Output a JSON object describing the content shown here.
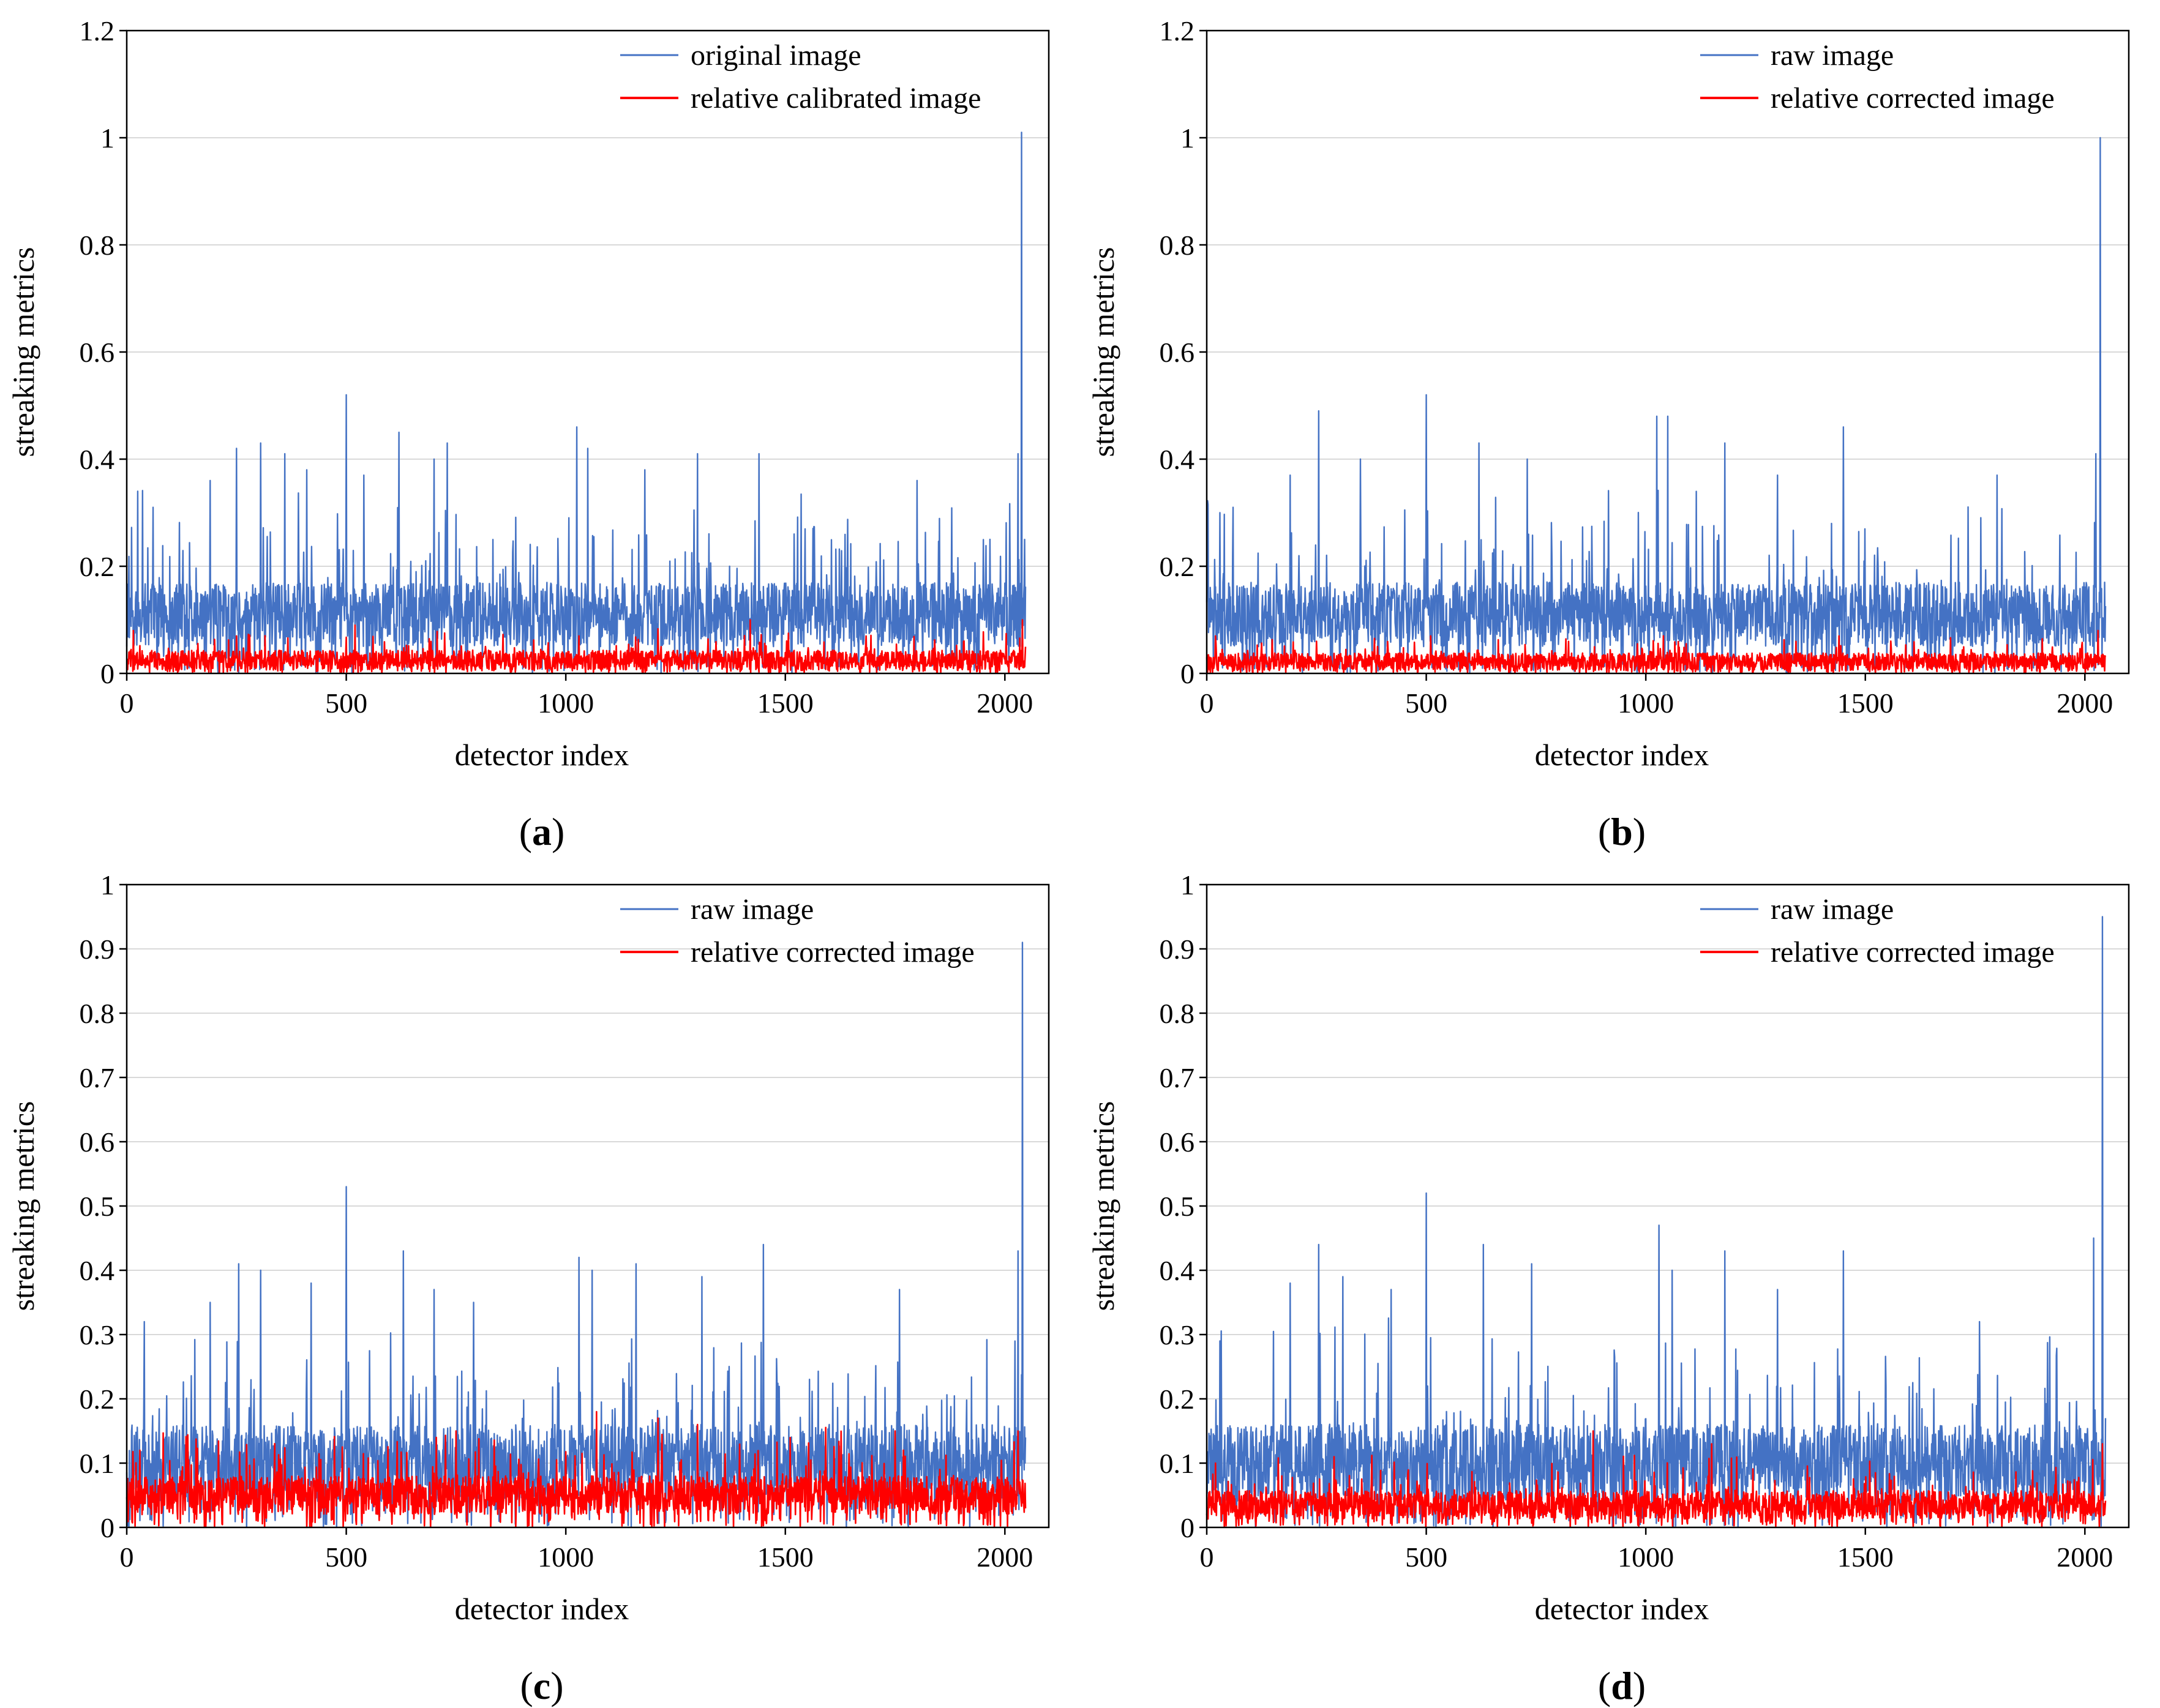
{
  "chart_data": [
    {
      "type": "line",
      "panel": "(a)",
      "caption_letter": "a",
      "title": "",
      "xlabel": "detector index",
      "ylabel": "streaking metrics",
      "xlim": [
        0,
        2100
      ],
      "ylim": [
        0,
        1.2
      ],
      "x_ticks": [
        0,
        500,
        1000,
        1500,
        2000
      ],
      "x_tick_labels": [
        "0",
        "500",
        "1000",
        "1500",
        "2000"
      ],
      "y_ticks": [
        0,
        0.2,
        0.4,
        0.6,
        0.8,
        1.0,
        1.2
      ],
      "y_tick_labels": [
        "0",
        "0.2",
        "0.4",
        "0.6",
        "0.8",
        "1",
        "1.2"
      ],
      "legend_position": "top-right",
      "series": [
        {
          "name": "original image",
          "color": "#4472C4",
          "base": 0.11,
          "noise": 0.06,
          "seed": 11,
          "n": 2048,
          "peaks": [
            [
              25,
              0.34
            ],
            [
              60,
              0.31
            ],
            [
              190,
              0.36
            ],
            [
              250,
              0.42
            ],
            [
              305,
              0.43
            ],
            [
              360,
              0.41
            ],
            [
              410,
              0.38
            ],
            [
              500,
              0.52
            ],
            [
              540,
              0.37
            ],
            [
              620,
              0.45
            ],
            [
              700,
              0.4
            ],
            [
              730,
              0.43
            ],
            [
              1025,
              0.46
            ],
            [
              1050,
              0.42
            ],
            [
              1180,
              0.38
            ],
            [
              1300,
              0.41
            ],
            [
              1440,
              0.41
            ],
            [
              1800,
              0.36
            ],
            [
              2030,
              0.41
            ],
            [
              2038,
              1.01
            ],
            [
              2045,
              0.25
            ]
          ]
        },
        {
          "name": "relative calibrated image",
          "color": "#FF0000",
          "base": 0.025,
          "noise": 0.018,
          "seed": 12,
          "n": 2048,
          "peaks": [
            [
              15,
              0.08
            ],
            [
              250,
              0.07
            ],
            [
              520,
              0.09
            ],
            [
              1030,
              0.07
            ],
            [
              1420,
              0.1
            ],
            [
              2040,
              0.1
            ]
          ]
        }
      ]
    },
    {
      "type": "line",
      "panel": "(b)",
      "caption_letter": "b",
      "title": "",
      "xlabel": "detector index",
      "ylabel": "streaking metrics",
      "xlim": [
        0,
        2100
      ],
      "ylim": [
        0,
        1.2
      ],
      "x_ticks": [
        0,
        500,
        1000,
        1500,
        2000
      ],
      "x_tick_labels": [
        "0",
        "500",
        "1000",
        "1500",
        "2000"
      ],
      "y_ticks": [
        0,
        0.2,
        0.4,
        0.6,
        0.8,
        1.0,
        1.2
      ],
      "y_tick_labels": [
        "0",
        "0.2",
        "0.4",
        "0.6",
        "0.8",
        "1",
        "1.2"
      ],
      "legend_position": "top-right",
      "series": [
        {
          "name": "raw image",
          "color": "#4472C4",
          "base": 0.11,
          "noise": 0.06,
          "seed": 21,
          "n": 2048,
          "peaks": [
            [
              30,
              0.3
            ],
            [
              60,
              0.31
            ],
            [
              190,
              0.37
            ],
            [
              255,
              0.49
            ],
            [
              350,
              0.4
            ],
            [
              500,
              0.52
            ],
            [
              620,
              0.43
            ],
            [
              730,
              0.4
            ],
            [
              1025,
              0.48
            ],
            [
              1050,
              0.48
            ],
            [
              1180,
              0.43
            ],
            [
              1300,
              0.37
            ],
            [
              1450,
              0.46
            ],
            [
              1800,
              0.37
            ],
            [
              2025,
              0.41
            ],
            [
              2035,
              1.0
            ],
            [
              2045,
              0.17
            ]
          ]
        },
        {
          "name": "relative corrected image",
          "color": "#FF0000",
          "base": 0.022,
          "noise": 0.016,
          "seed": 22,
          "n": 2048,
          "peaks": [
            [
              20,
              0.07
            ],
            [
              250,
              0.06
            ],
            [
              510,
              0.07
            ],
            [
              1040,
              0.07
            ],
            [
              1440,
              0.07
            ],
            [
              2030,
              0.08
            ]
          ]
        }
      ]
    },
    {
      "type": "line",
      "panel": "(c)",
      "caption_letter": "c",
      "title": "",
      "xlabel": "detector index",
      "ylabel": "streaking metrics",
      "xlim": [
        0,
        2100
      ],
      "ylim": [
        0,
        1.0
      ],
      "x_ticks": [
        0,
        500,
        1000,
        1500,
        2000
      ],
      "x_tick_labels": [
        "0",
        "500",
        "1000",
        "1500",
        "2000"
      ],
      "y_ticks": [
        0,
        0.1,
        0.2,
        0.3,
        0.4,
        0.5,
        0.6,
        0.7,
        0.8,
        0.9,
        1.0
      ],
      "y_tick_labels": [
        "0",
        "0.1",
        "0.2",
        "0.3",
        "0.4",
        "0.5",
        "0.6",
        "0.7",
        "0.8",
        "0.9",
        "1"
      ],
      "legend_position": "top-right",
      "series": [
        {
          "name": "raw image",
          "color": "#4472C4",
          "base": 0.1,
          "noise": 0.06,
          "seed": 31,
          "n": 2048,
          "peaks": [
            [
              40,
              0.32
            ],
            [
              190,
              0.35
            ],
            [
              255,
              0.41
            ],
            [
              305,
              0.4
            ],
            [
              420,
              0.38
            ],
            [
              500,
              0.53
            ],
            [
              630,
              0.43
            ],
            [
              700,
              0.37
            ],
            [
              790,
              0.35
            ],
            [
              1030,
              0.42
            ],
            [
              1060,
              0.4
            ],
            [
              1160,
              0.41
            ],
            [
              1310,
              0.39
            ],
            [
              1450,
              0.44
            ],
            [
              1760,
              0.37
            ],
            [
              2030,
              0.43
            ],
            [
              2040,
              0.91
            ],
            [
              2048,
              0.14
            ]
          ]
        },
        {
          "name": "relative corrected image",
          "color": "#FF0000",
          "base": 0.05,
          "noise": 0.03,
          "seed": 32,
          "n": 2048,
          "peaks": [
            [
              30,
              0.12
            ],
            [
              750,
              0.15
            ],
            [
              1070,
              0.18
            ],
            [
              1210,
              0.17
            ],
            [
              1300,
              0.16
            ],
            [
              1750,
              0.15
            ],
            [
              2030,
              0.15
            ]
          ]
        }
      ]
    },
    {
      "type": "line",
      "panel": "(d)",
      "caption_letter": "d",
      "title": "",
      "xlabel": "detector index",
      "ylabel": "streaking metrics",
      "xlim": [
        0,
        2100
      ],
      "ylim": [
        0,
        1.0
      ],
      "x_ticks": [
        0,
        500,
        1000,
        1500,
        2000
      ],
      "x_tick_labels": [
        "0",
        "500",
        "1000",
        "1500",
        "2000"
      ],
      "y_ticks": [
        0,
        0.1,
        0.2,
        0.3,
        0.4,
        0.5,
        0.6,
        0.7,
        0.8,
        0.9,
        1.0
      ],
      "y_tick_labels": [
        "0",
        "0.1",
        "0.2",
        "0.3",
        "0.4",
        "0.5",
        "0.6",
        "0.7",
        "0.8",
        "0.9",
        "1"
      ],
      "legend_position": "top-right",
      "series": [
        {
          "name": "raw image",
          "color": "#4472C4",
          "base": 0.1,
          "noise": 0.06,
          "seed": 41,
          "n": 2048,
          "peaks": [
            [
              30,
              0.29
            ],
            [
              190,
              0.38
            ],
            [
              255,
              0.44
            ],
            [
              310,
              0.39
            ],
            [
              420,
              0.37
            ],
            [
              500,
              0.52
            ],
            [
              630,
              0.44
            ],
            [
              740,
              0.41
            ],
            [
              1030,
              0.47
            ],
            [
              1060,
              0.4
            ],
            [
              1180,
              0.43
            ],
            [
              1300,
              0.37
            ],
            [
              1450,
              0.43
            ],
            [
              1760,
              0.32
            ],
            [
              2020,
              0.45
            ],
            [
              2040,
              0.95
            ],
            [
              2048,
              0.17
            ]
          ]
        },
        {
          "name": "relative corrected image",
          "color": "#FF0000",
          "base": 0.035,
          "noise": 0.022,
          "seed": 42,
          "n": 2048,
          "peaks": [
            [
              20,
              0.1
            ],
            [
              290,
              0.11
            ],
            [
              880,
              0.15
            ],
            [
              1150,
              0.13
            ],
            [
              2040,
              0.13
            ]
          ]
        }
      ]
    }
  ]
}
